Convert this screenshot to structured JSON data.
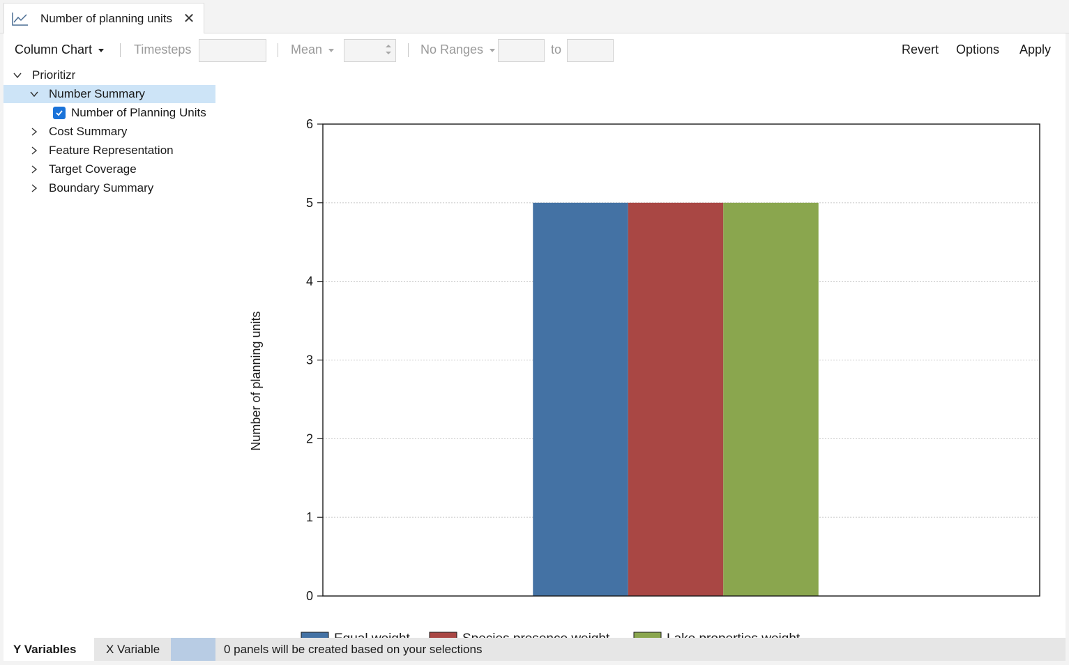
{
  "tab": {
    "title": "Number of planning units",
    "icon": "line-chart-icon",
    "close_icon": "close-icon",
    "close_glyph": "✕"
  },
  "toolbar": {
    "chart_type": "Column Chart",
    "timesteps_label": "Timesteps",
    "timesteps_value": "",
    "aggregate": "Mean",
    "aggregate_value": "",
    "ranges": "No Ranges",
    "range_from": "",
    "range_to_label": "to",
    "range_to": "",
    "revert": "Revert",
    "options": "Options",
    "apply": "Apply"
  },
  "tree": {
    "root": "Prioritizr",
    "items": [
      {
        "label": "Number Summary",
        "expanded": true,
        "selected": true,
        "children": [
          {
            "label": "Number of Planning Units",
            "checked": true
          }
        ]
      },
      {
        "label": "Cost Summary",
        "expanded": false
      },
      {
        "label": "Feature Representation",
        "expanded": false
      },
      {
        "label": "Target Coverage",
        "expanded": false
      },
      {
        "label": "Boundary Summary",
        "expanded": false
      }
    ]
  },
  "chart_data": {
    "type": "bar",
    "categories": [
      ""
    ],
    "series": [
      {
        "name": "Equal weight",
        "values": [
          5
        ],
        "color": "#4472a4"
      },
      {
        "name": "Species presence weight",
        "values": [
          5
        ],
        "color": "#a94744"
      },
      {
        "name": "Lake properties weight",
        "values": [
          5
        ],
        "color": "#8aa64e"
      }
    ],
    "title": "",
    "xlabel": "",
    "ylabel": "Number of planning units",
    "ylim": [
      0,
      6
    ],
    "yticks": [
      0,
      1,
      2,
      3,
      4,
      5,
      6
    ],
    "grid": true,
    "legend": "bottom"
  },
  "bottom": {
    "y_tab": "Y Variables",
    "x_tab": "X Variable",
    "status": "0 panels will be created based on your selections"
  }
}
